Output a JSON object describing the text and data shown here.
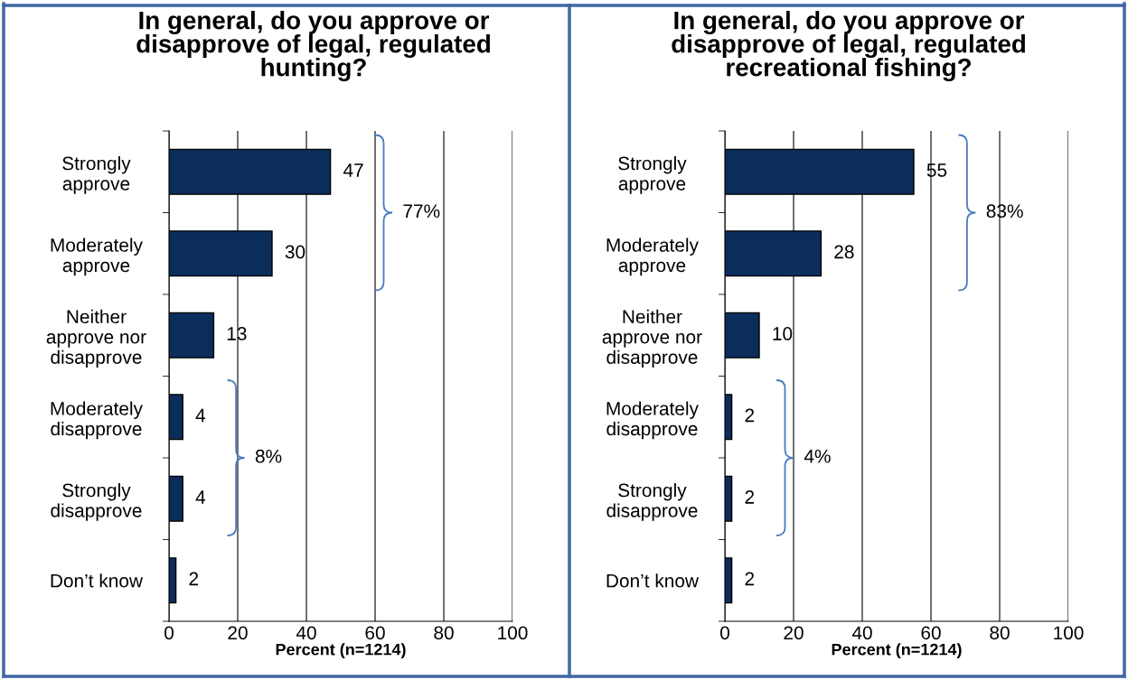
{
  "chart_data": [
    {
      "type": "bar",
      "orientation": "horizontal",
      "title": "In general, do you approve or\ndisapprove of legal, regulated\nhunting?",
      "xlabel": "Percent (n=1214)",
      "categories": [
        "Strongly\napprove",
        "Moderately\napprove",
        "Neither\napprove nor\ndisapprove",
        "Moderately\ndisapprove",
        "Strongly\ndisapprove",
        "Don’t know"
      ],
      "values": [
        47,
        30,
        13,
        4,
        4,
        2
      ],
      "color": "#0b2d5b",
      "data_labels": true,
      "xlim": [
        0,
        100
      ],
      "xticks": [
        0,
        20,
        40,
        60,
        80,
        100
      ],
      "grid": "x",
      "annotations": [
        "77%",
        "8%"
      ]
    },
    {
      "type": "bar",
      "orientation": "horizontal",
      "title": "In general, do you approve or\ndisapprove of legal, regulated\nrecreational fishing?",
      "xlabel": "Percent (n=1214)",
      "categories": [
        "Strongly\napprove",
        "Moderately\napprove",
        "Neither\napprove nor\ndisapprove",
        "Moderately\ndisapprove",
        "Strongly\ndisapprove",
        "Don’t know"
      ],
      "values": [
        55,
        28,
        10,
        2,
        2,
        2
      ],
      "color": "#0b2d5b",
      "data_labels": true,
      "xlim": [
        0,
        100
      ],
      "xticks": [
        0,
        20,
        40,
        60,
        80,
        100
      ],
      "grid": "x",
      "annotations": [
        "83%",
        "4%"
      ]
    }
  ]
}
